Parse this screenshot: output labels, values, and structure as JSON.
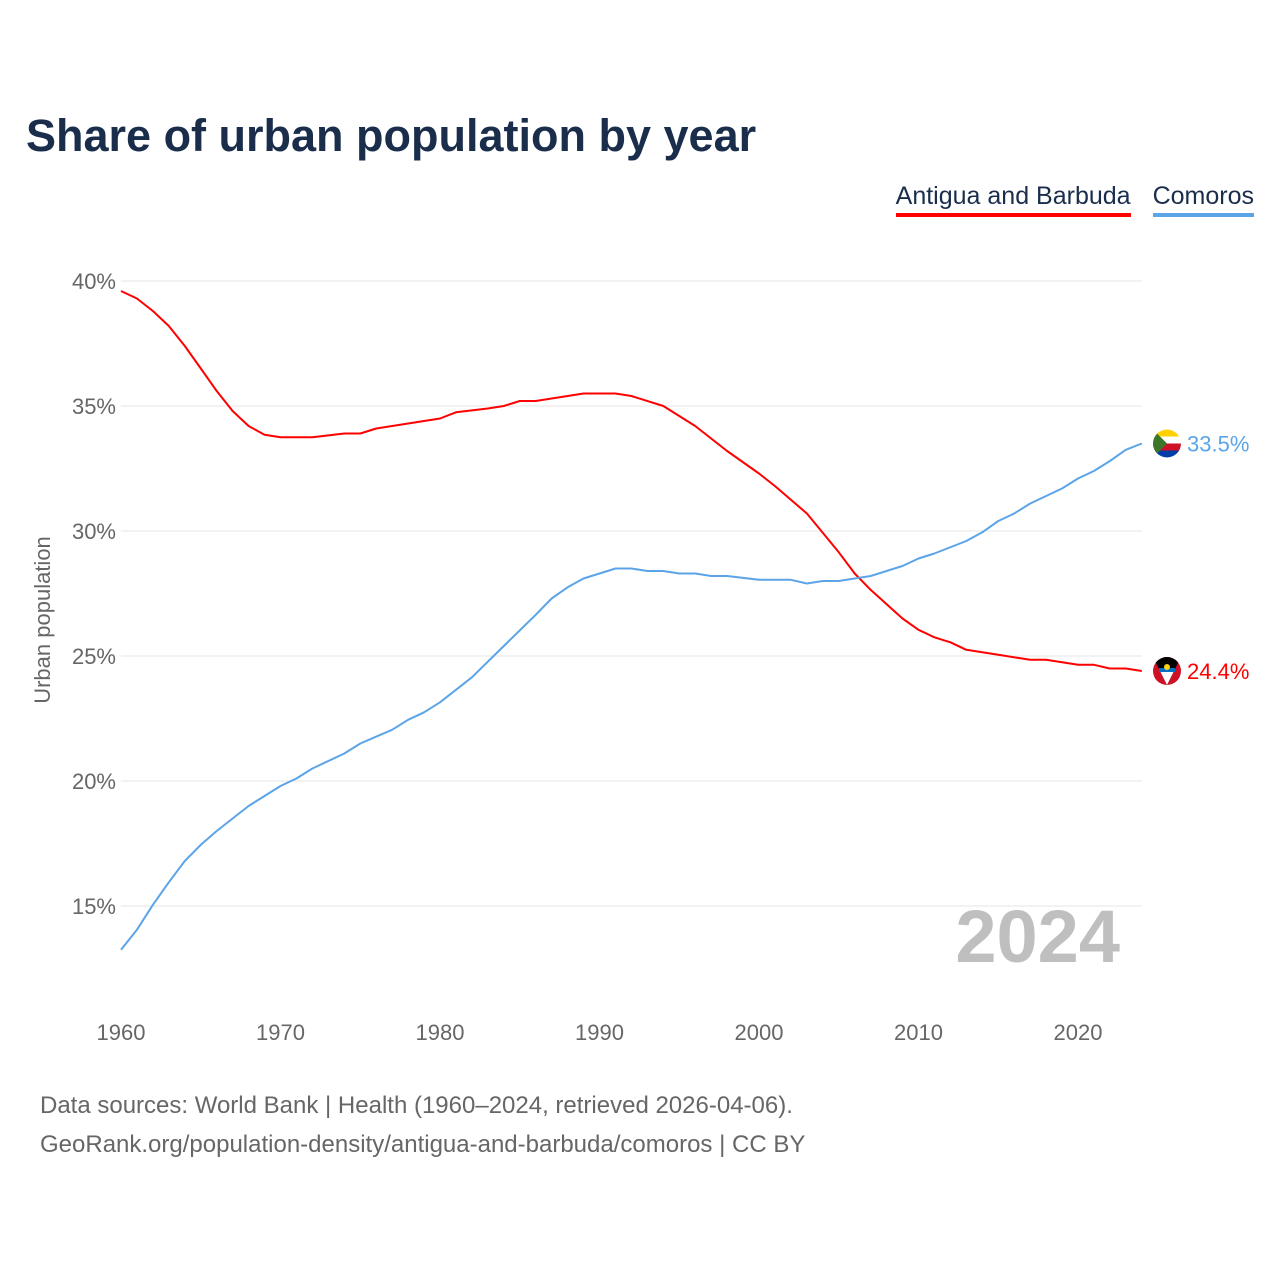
{
  "chart_data": {
    "type": "line",
    "title": "Share of urban population by year",
    "xlabel": "",
    "ylabel": "Urban population",
    "xlim": [
      1960,
      2024
    ],
    "ylim": [
      12,
      41
    ],
    "yticks": [
      15,
      20,
      25,
      30,
      35,
      40
    ],
    "ytick_labels": [
      "15%",
      "20%",
      "25%",
      "30%",
      "35%",
      "40%"
    ],
    "xticks": [
      1960,
      1970,
      1980,
      1990,
      2000,
      2010,
      2020
    ],
    "xtick_labels": [
      "1960",
      "1970",
      "1980",
      "1990",
      "2000",
      "2010",
      "2020"
    ],
    "grid": true,
    "legend_position": "top-right",
    "year_watermark": "2024",
    "series": [
      {
        "name": "Antigua and Barbuda",
        "color": "#ff0000",
        "end_label": "24.4%",
        "flag_icon": "antigua-and-barbuda-flag",
        "points": [
          [
            1960,
            39.6
          ],
          [
            1961,
            39.3
          ],
          [
            1962,
            38.8
          ],
          [
            1963,
            38.2
          ],
          [
            1964,
            37.4
          ],
          [
            1965,
            36.5
          ],
          [
            1966,
            35.6
          ],
          [
            1967,
            34.8
          ],
          [
            1968,
            34.2
          ],
          [
            1969,
            33.85
          ],
          [
            1970,
            33.75
          ],
          [
            1972,
            33.75
          ],
          [
            1974,
            33.9
          ],
          [
            1975,
            33.9
          ],
          [
            1976,
            34.1
          ],
          [
            1978,
            34.3
          ],
          [
            1980,
            34.5
          ],
          [
            1981,
            34.75
          ],
          [
            1983,
            34.9
          ],
          [
            1984,
            35.0
          ],
          [
            1985,
            35.2
          ],
          [
            1986,
            35.2
          ],
          [
            1988,
            35.4
          ],
          [
            1989,
            35.5
          ],
          [
            1991,
            35.5
          ],
          [
            1992,
            35.4
          ],
          [
            1994,
            35.0
          ],
          [
            1996,
            34.2
          ],
          [
            1998,
            33.2
          ],
          [
            2000,
            32.3
          ],
          [
            2001,
            31.8
          ],
          [
            2003,
            30.7
          ],
          [
            2005,
            29.15
          ],
          [
            2006,
            28.3
          ],
          [
            2007,
            27.65
          ],
          [
            2009,
            26.5
          ],
          [
            2010,
            26.05
          ],
          [
            2011,
            25.75
          ],
          [
            2012,
            25.55
          ],
          [
            2013,
            25.25
          ],
          [
            2015,
            25.05
          ],
          [
            2017,
            24.85
          ],
          [
            2018,
            24.85
          ],
          [
            2020,
            24.65
          ],
          [
            2021,
            24.65
          ],
          [
            2022,
            24.5
          ],
          [
            2023,
            24.5
          ],
          [
            2024,
            24.4
          ]
        ]
      },
      {
        "name": "Comoros",
        "color": "#5ba4e8",
        "end_label": "33.5%",
        "flag_icon": "comoros-flag",
        "points": [
          [
            1960,
            13.25
          ],
          [
            1961,
            14.05
          ],
          [
            1962,
            15.05
          ],
          [
            1963,
            15.95
          ],
          [
            1964,
            16.8
          ],
          [
            1965,
            17.45
          ],
          [
            1966,
            18.0
          ],
          [
            1967,
            18.5
          ],
          [
            1968,
            19.0
          ],
          [
            1969,
            19.4
          ],
          [
            1970,
            19.8
          ],
          [
            1971,
            20.1
          ],
          [
            1972,
            20.5
          ],
          [
            1974,
            21.1
          ],
          [
            1975,
            21.5
          ],
          [
            1977,
            22.05
          ],
          [
            1978,
            22.45
          ],
          [
            1979,
            22.75
          ],
          [
            1980,
            23.15
          ],
          [
            1982,
            24.15
          ],
          [
            1984,
            25.4
          ],
          [
            1986,
            26.65
          ],
          [
            1987,
            27.3
          ],
          [
            1988,
            27.75
          ],
          [
            1989,
            28.1
          ],
          [
            1990,
            28.3
          ],
          [
            1991,
            28.5
          ],
          [
            1992,
            28.5
          ],
          [
            1993,
            28.4
          ],
          [
            1994,
            28.4
          ],
          [
            1995,
            28.3
          ],
          [
            1996,
            28.3
          ],
          [
            1997,
            28.2
          ],
          [
            1998,
            28.2
          ],
          [
            2000,
            28.05
          ],
          [
            2002,
            28.05
          ],
          [
            2003,
            27.9
          ],
          [
            2004,
            28.0
          ],
          [
            2005,
            28.0
          ],
          [
            2007,
            28.2
          ],
          [
            2009,
            28.6
          ],
          [
            2010,
            28.9
          ],
          [
            2011,
            29.1
          ],
          [
            2013,
            29.6
          ],
          [
            2014,
            29.95
          ],
          [
            2015,
            30.4
          ],
          [
            2016,
            30.7
          ],
          [
            2017,
            31.1
          ],
          [
            2018,
            31.4
          ],
          [
            2019,
            31.7
          ],
          [
            2020,
            32.1
          ],
          [
            2021,
            32.4
          ],
          [
            2022,
            32.8
          ],
          [
            2023,
            33.25
          ],
          [
            2024,
            33.5
          ]
        ]
      }
    ]
  },
  "footer": {
    "line1": "Data sources: World Bank | Health (1960–2024, retrieved 2026-04-06).",
    "line2": "GeoRank.org/population-density/antigua-and-barbuda/comoros | CC BY"
  }
}
